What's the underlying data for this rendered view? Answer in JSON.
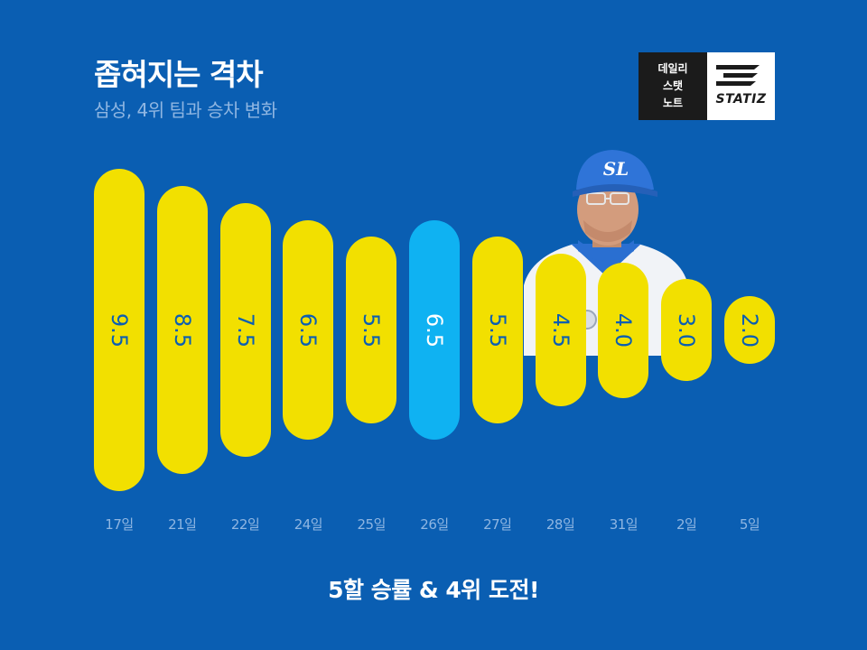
{
  "header": {
    "title": "좁혀지는 격차",
    "subtitle": "삼성, 4위 팀과 승차 변화"
  },
  "logo": {
    "line1": "데일리",
    "line2": "스탯",
    "line3": "노트",
    "word": "STATIZ"
  },
  "footer": {
    "text": "5할 승률 & 4위 도전!"
  },
  "colors": {
    "background": "#0a5eb2",
    "bar": "#f2e000",
    "highlight": "#0fb2f2"
  },
  "chart_data": {
    "type": "bar",
    "categories": [
      "17일",
      "21일",
      "22일",
      "24일",
      "25일",
      "26일",
      "27일",
      "28일",
      "31일",
      "2일",
      "5일"
    ],
    "values": [
      9.5,
      8.5,
      7.5,
      6.5,
      5.5,
      6.5,
      5.5,
      4.5,
      4.0,
      3.0,
      2.0
    ],
    "value_labels": [
      "9.5",
      "8.5",
      "7.5",
      "6.5",
      "5.5",
      "6.5",
      "5.5",
      "4.5",
      "4.0",
      "3.0",
      "2.0"
    ],
    "highlight_index": 5,
    "title": "좁혀지는 격차",
    "subtitle": "삼성, 4위 팀과 승차 변화",
    "grid": false,
    "legend": "none"
  }
}
